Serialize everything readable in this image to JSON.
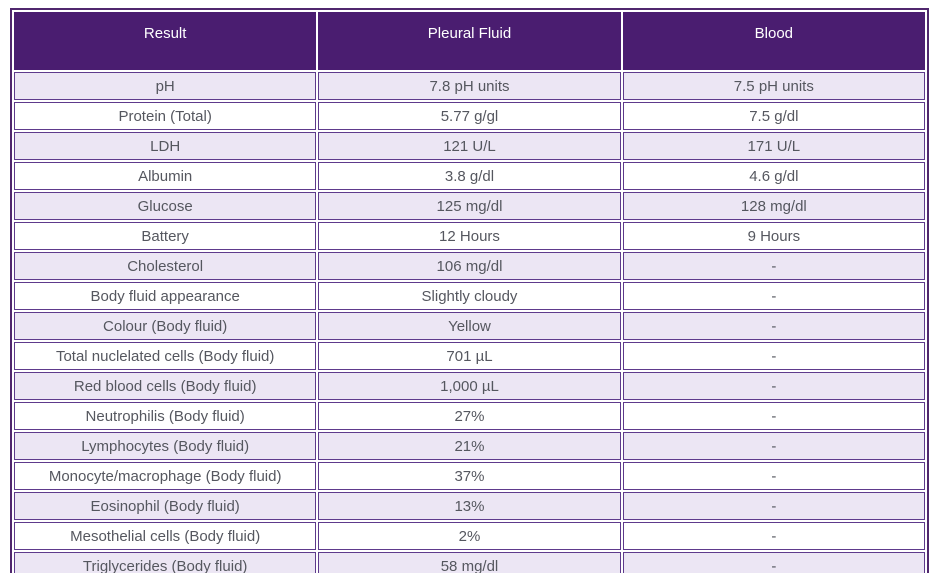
{
  "table": {
    "columns": [
      "Result",
      "Pleural Fluid",
      "Blood"
    ],
    "rows": [
      {
        "result": "pH",
        "pleural_fluid": "7.8 pH units",
        "blood": "7.5 pH units"
      },
      {
        "result": "Protein (Total)",
        "pleural_fluid": "5.77 g/gl",
        "blood": "7.5 g/dl"
      },
      {
        "result": "LDH",
        "pleural_fluid": "121 U/L",
        "blood": "171 U/L"
      },
      {
        "result": "Albumin",
        "pleural_fluid": "3.8 g/dl",
        "blood": "4.6 g/dl"
      },
      {
        "result": "Glucose",
        "pleural_fluid": "125 mg/dl",
        "blood": "128 mg/dl"
      },
      {
        "result": "Battery",
        "pleural_fluid": "12 Hours",
        "blood": "9 Hours"
      },
      {
        "result": "Cholesterol",
        "pleural_fluid": "106 mg/dl",
        "blood": "-"
      },
      {
        "result": "Body fluid appearance",
        "pleural_fluid": "Slightly cloudy",
        "blood": "-"
      },
      {
        "result": "Colour (Body fluid)",
        "pleural_fluid": "Yellow",
        "blood": "-"
      },
      {
        "result": "Total nuclelated cells (Body fluid)",
        "pleural_fluid": "701 µL",
        "blood": "-"
      },
      {
        "result": "Red blood cells (Body fluid)",
        "pleural_fluid": "1,000 µL",
        "blood": "-"
      },
      {
        "result": "Neutrophilis (Body fluid)",
        "pleural_fluid": "27%",
        "blood": "-"
      },
      {
        "result": "Lymphocytes (Body fluid)",
        "pleural_fluid": "21%",
        "blood": "-"
      },
      {
        "result": "Monocyte/macrophage (Body fluid)",
        "pleural_fluid": "37%",
        "blood": "-"
      },
      {
        "result": "Eosinophil (Body fluid)",
        "pleural_fluid": "13%",
        "blood": "-"
      },
      {
        "result": "Mesothelial cells (Body fluid)",
        "pleural_fluid": "2%",
        "blood": "-"
      },
      {
        "result": "Triglycerides (Body fluid)",
        "pleural_fluid": "58 mg/dl",
        "blood": "-"
      }
    ]
  },
  "colors": {
    "header_bg": "#4a1d70",
    "header_text": "#ffffff",
    "row_alt_bg": "#ece6f4",
    "row_bg": "#ffffff",
    "cell_border": "#5e3a8c",
    "cell_text": "#55575f",
    "outer_border": "#50276e",
    "bottom_edge": "#4a4a50"
  }
}
